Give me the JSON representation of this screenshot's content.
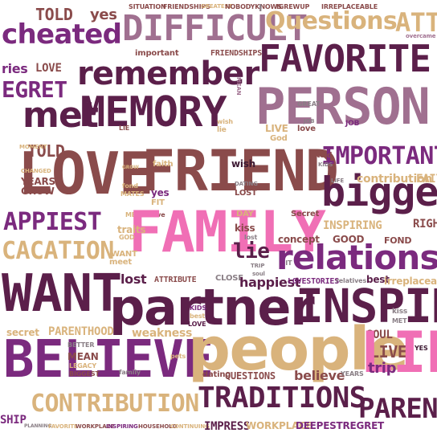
{
  "palette": {
    "plum": "#5b1f4a",
    "purple": "#7b2a7e",
    "mauve": "#a07090",
    "pink": "#f06fb5",
    "tan": "#d9b37c",
    "brown": "#8a4b4b",
    "gray": "#8a7f86",
    "dark": "#3d1a33"
  },
  "words": [
    {
      "text": "cheated",
      "color": "purple"
    },
    {
      "text": "TOLD",
      "color": "brown"
    },
    {
      "text": "yes",
      "color": "brown"
    },
    {
      "text": "DIFFICULT",
      "color": "mauve"
    },
    {
      "text": "Questions",
      "color": "tan"
    },
    {
      "text": "ATTR",
      "color": "tan"
    },
    {
      "text": "SITUATION",
      "color": "brown"
    },
    {
      "text": "FRIENDSHIPS",
      "color": "brown"
    },
    {
      "text": "GREATEST",
      "color": "tan"
    },
    {
      "text": "NOBODYKNOWS",
      "color": "brown"
    },
    {
      "text": "I",
      "color": "gray"
    },
    {
      "text": "IGREWUP",
      "color": "brown"
    },
    {
      "text": "IRREPLACEABLE",
      "color": "brown"
    },
    {
      "text": "overcame",
      "color": "mauve"
    },
    {
      "text": "ries",
      "color": "purple"
    },
    {
      "text": "LOVE",
      "color": "brown"
    },
    {
      "text": "important",
      "color": "brown"
    },
    {
      "text": "FRIENDSHIPS",
      "color": "brown"
    },
    {
      "text": "FAVORITE",
      "color": "plum"
    },
    {
      "text": "EGRET",
      "color": "purple"
    },
    {
      "text": "remember",
      "color": "plum"
    },
    {
      "text": "MEAN",
      "color": "mauve"
    },
    {
      "text": "met",
      "color": "plum"
    },
    {
      "text": "MEMORY",
      "color": "plum"
    },
    {
      "text": "PERSON",
      "color": "mauve"
    },
    {
      "text": "GREAT",
      "color": "gray"
    },
    {
      "text": "LIE",
      "color": "brown"
    },
    {
      "text": "wish",
      "color": "tan"
    },
    {
      "text": "lie",
      "color": "tan"
    },
    {
      "text": "LIVE",
      "color": "tan"
    },
    {
      "text": "love",
      "color": "brown"
    },
    {
      "text": "JOB",
      "color": "gray"
    },
    {
      "text": "JOB",
      "color": "purple"
    },
    {
      "text": "God",
      "color": "tan"
    },
    {
      "text": "TOLD",
      "color": "brown"
    },
    {
      "text": "MOMENT",
      "color": "tan"
    },
    {
      "text": "LOVE",
      "color": "brown"
    },
    {
      "text": "FRIEND",
      "color": "brown"
    },
    {
      "text": "IMPORTANT",
      "color": "purple"
    },
    {
      "text": "CHANGED",
      "color": "tan"
    },
    {
      "text": "YEARS",
      "color": "brown"
    },
    {
      "text": "GROW",
      "color": "brown"
    },
    {
      "text": "GROW",
      "color": "tan"
    },
    {
      "text": "faith",
      "color": "tan"
    },
    {
      "text": "wish",
      "color": "dark"
    },
    {
      "text": "told",
      "color": "brown"
    },
    {
      "text": "KIDS",
      "color": "gray"
    },
    {
      "text": "bigger",
      "color": "plum"
    },
    {
      "text": "contribution",
      "color": "tan"
    },
    {
      "text": "FAIT",
      "color": "tan"
    },
    {
      "text": "fond",
      "color": "tan"
    },
    {
      "text": "MATES",
      "color": "tan"
    },
    {
      "text": "yes",
      "color": "purple"
    },
    {
      "text": "FIT",
      "color": "tan"
    },
    {
      "text": "DATING",
      "color": "gray"
    },
    {
      "text": "LOST",
      "color": "brown"
    },
    {
      "text": "LIFE",
      "color": "gray"
    },
    {
      "text": "APPIEST",
      "color": "purple"
    },
    {
      "text": "MET",
      "color": "tan"
    },
    {
      "text": "live",
      "color": "brown"
    },
    {
      "text": "FAMILY",
      "color": "pink"
    },
    {
      "text": "DAY",
      "color": "tan"
    },
    {
      "text": "Secret",
      "color": "brown"
    },
    {
      "text": "INSPIRING",
      "color": "tan"
    },
    {
      "text": "kiss",
      "color": "brown"
    },
    {
      "text": "RIGH",
      "color": "brown"
    },
    {
      "text": "traits",
      "color": "tan"
    },
    {
      "text": "GOD",
      "color": "tan"
    },
    {
      "text": "lost",
      "color": "gray"
    },
    {
      "text": "concept",
      "color": "brown"
    },
    {
      "text": "GOOD",
      "color": "brown"
    },
    {
      "text": "FOND",
      "color": "brown"
    },
    {
      "text": "CACATION",
      "color": "tan"
    },
    {
      "text": "WANT",
      "color": "tan"
    },
    {
      "text": "lie",
      "color": "plum"
    },
    {
      "text": "FIT",
      "color": "gray"
    },
    {
      "text": "relations",
      "color": "purple"
    },
    {
      "text": "meet",
      "color": "tan"
    },
    {
      "text": "TRIP",
      "color": "gray"
    },
    {
      "text": "soul",
      "color": "gray"
    },
    {
      "text": "lost",
      "color": "plum"
    },
    {
      "text": "ATTRIBUTE",
      "color": "brown"
    },
    {
      "text": "CLOSE",
      "color": "gray"
    },
    {
      "text": "happiest",
      "color": "plum"
    },
    {
      "text": "LOVESTORIES",
      "color": "purple"
    },
    {
      "text": "relatives",
      "color": "gray"
    },
    {
      "text": "best",
      "color": "plum"
    },
    {
      "text": "irreplaceable",
      "color": "tan"
    },
    {
      "text": "WANT",
      "color": "plum"
    },
    {
      "text": "partner",
      "color": "plum"
    },
    {
      "text": "INSPIRI",
      "color": "plum"
    },
    {
      "text": "KIDS",
      "color": "purple"
    },
    {
      "text": "best",
      "color": "tan"
    },
    {
      "text": "LOVE",
      "color": "plum"
    },
    {
      "text": "kiss",
      "color": "gray"
    },
    {
      "text": "MET",
      "color": "gray"
    },
    {
      "text": "secret",
      "color": "tan"
    },
    {
      "text": "PARENTHOOD",
      "color": "tan"
    },
    {
      "text": "weakness",
      "color": "tan"
    },
    {
      "text": "BELIEVE",
      "color": "purple"
    },
    {
      "text": "people",
      "color": "tan"
    },
    {
      "text": "SOUL",
      "color": "brown"
    },
    {
      "text": "LIVE",
      "color": "brown"
    },
    {
      "text": "LIF",
      "color": "pink"
    },
    {
      "text": "BETTER",
      "color": "gray"
    },
    {
      "text": "MEAN",
      "color": "brown"
    },
    {
      "text": "LEGACY",
      "color": "tan"
    },
    {
      "text": "BIGGEST",
      "color": "brown"
    },
    {
      "text": "family",
      "color": "gray"
    },
    {
      "text": "pets",
      "color": "tan"
    },
    {
      "text": "trip",
      "color": "purple"
    },
    {
      "text": "YES",
      "color": "dark"
    },
    {
      "text": "dating",
      "color": "brown"
    },
    {
      "text": "QUESTIONS",
      "color": "brown"
    },
    {
      "text": "believe",
      "color": "brown"
    },
    {
      "text": "YEARS",
      "color": "gray"
    },
    {
      "text": "CONTRIBUTION",
      "color": "tan"
    },
    {
      "text": "TRADITIONS",
      "color": "plum"
    },
    {
      "text": "PAREN",
      "color": "plum"
    },
    {
      "text": "SHIP",
      "color": "purple"
    },
    {
      "text": "PLANNING",
      "color": "gray"
    },
    {
      "text": "FAVORITE",
      "color": "tan"
    },
    {
      "text": "WORKPLACE",
      "color": "brown"
    },
    {
      "text": "INSPIRING",
      "color": "purple"
    },
    {
      "text": "HOUSEHOLD",
      "color": "brown"
    },
    {
      "text": "CONTINUING",
      "color": "tan"
    },
    {
      "text": "IMPRESS",
      "color": "plum"
    },
    {
      "text": "WORKPLACE",
      "color": "tan"
    },
    {
      "text": "DEEPESTREGRET",
      "color": "purple"
    }
  ]
}
